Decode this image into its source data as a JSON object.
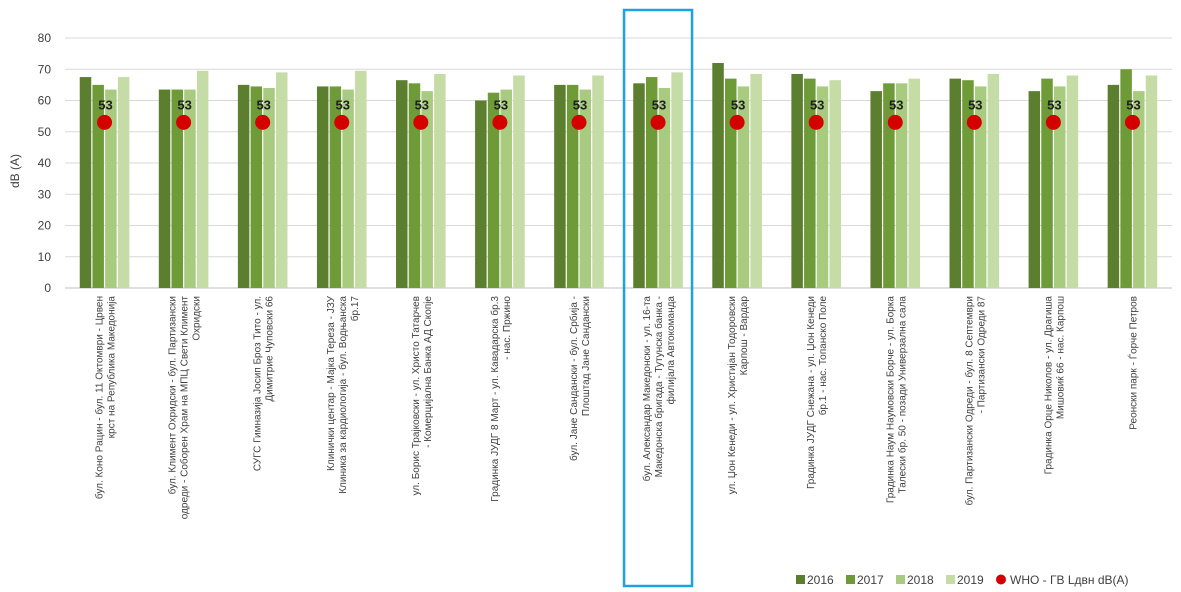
{
  "chart_data": {
    "type": "bar",
    "title": "",
    "xlabel": "",
    "ylabel": "dB (A)",
    "ylim": [
      0,
      80
    ],
    "yticks": [
      0,
      10,
      20,
      30,
      40,
      50,
      60,
      70,
      80
    ],
    "grid": true,
    "legend_position": "bottom-right",
    "categories": [
      "бул. Коно Рацин - бул. 11 Октомври - Црвен крст на Република Македонија",
      "бул. Климент Охридски - бул. Партизански одреди - Соборен Храм на МПЦ Свети Климент Охридски",
      "СУГС Гимназија Јосип Броз Тито - ул. Димитрие Чуповски 66",
      "Клинички центар - Мајка Тереза - ЈЗУ Клиника за кардиологија - бул. Водњанска бр.17",
      "ул. Борис Трајковски - ул. Христо Татарчев - Комерцијална Банка АД Скопје",
      "Градинка ЈУДГ 8 Март - ул. Кавадарска бр.3 - нас. Пржино",
      "бул. Јане Сандански - бул. Србија - Плоштад Јане Сандански",
      "бул. Александар Македонски - ул. 16-та Македонска бригада - Тутунска банка - филијала Автокоманда",
      "ул. Џон Кенеди - ул. Христијан Тодоровски Карпош - Вардар",
      "Градинка ЈУДГ Снежана - ул. Џон Кенеди бр.1 - нас. Топанско Поле",
      "Градинка Наум Наумовски Борче - ул. Борка Талески бр. 50 - позади Универзална сала",
      "бул. Партизански Одреди - бул. 8 Септември - Партизански Одреди 87",
      "Градинка Орце Николов - ул. Драгиша Мишовиќ 66 - нас. Карпош",
      "Реонски парк - Ѓорче Петров"
    ],
    "series": [
      {
        "name": "2016",
        "color": "#5b7f2e",
        "values": [
          67.5,
          63.5,
          65,
          64.5,
          66.5,
          60,
          65,
          65.5,
          72,
          68.5,
          63,
          67,
          63,
          65
        ]
      },
      {
        "name": "2017",
        "color": "#6e9b38",
        "values": [
          65,
          63.5,
          64.5,
          64.5,
          65.5,
          62.5,
          65,
          67.5,
          67,
          67,
          65.5,
          66.5,
          67,
          70
        ]
      },
      {
        "name": "2018",
        "color": "#a9cb80",
        "values": [
          63.5,
          63.5,
          64,
          63.5,
          63,
          63.5,
          63.5,
          64,
          64.5,
          64.5,
          65.5,
          64.5,
          64.5,
          63
        ]
      },
      {
        "name": "2019",
        "color": "#c5dca6",
        "values": [
          67.5,
          69.5,
          69,
          69.5,
          68.5,
          68,
          68,
          69,
          68.5,
          66.5,
          67,
          68.5,
          68,
          68
        ]
      }
    ],
    "reference_series": {
      "name": "WHO - ГВ Lдвн dB(A)",
      "color": "#d40000",
      "values": [
        53,
        53,
        53,
        53,
        53,
        53,
        53,
        53,
        53,
        53,
        53,
        53,
        53,
        53
      ],
      "labels": [
        "53",
        "53",
        "53",
        "53",
        "53",
        "53",
        "53",
        "53",
        "53",
        "53",
        "53",
        "53",
        "53",
        "53"
      ]
    },
    "highlight_index": 7,
    "highlight_color": "#1aa3e0"
  }
}
